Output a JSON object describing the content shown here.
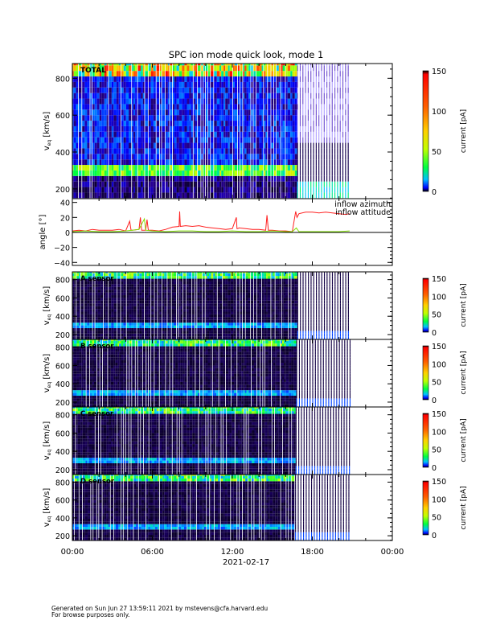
{
  "title": "SPC ion mode quick look, mode 1",
  "xaxis": {
    "tick_labels": [
      "00:00",
      "06:00",
      "12:00",
      "18:00",
      "00:00"
    ],
    "tick_hours": [
      0,
      6,
      12,
      18,
      24
    ],
    "date_label": "2021-02-17"
  },
  "footer": {
    "line1": "Generated on Sun Jun 27 13:59:11 2021 by mstevens@cfa.harvard.edu",
    "line2": "For browse purposes only."
  },
  "colors": {
    "azimuth": "#ff2020",
    "altitude": "#80e000",
    "missing": "#ffffff"
  },
  "chart_data": [
    {
      "type": "heatmap",
      "panel": "TOTAL",
      "label": "TOTAL",
      "ylabel": "v",
      "ylabel_sub": "eq",
      "ylabel_unit": "[km/s]",
      "yticks": [
        200,
        400,
        600,
        800
      ],
      "ylim": [
        147,
        880
      ],
      "xlim_hours": [
        0,
        24
      ],
      "colorbar": {
        "label": "current [pA]",
        "ticks": [
          0,
          50,
          100,
          150
        ],
        "range": [
          0,
          150
        ],
        "colormap": "rainbow"
      },
      "features": {
        "data_end_hour": 20.8,
        "mode_change_hour": 16.7,
        "core_band_kms": [
          250,
          320
        ],
        "core_band_after_change_kms": [
          170,
          230
        ]
      }
    },
    {
      "type": "line",
      "panel": "angle",
      "ylabel": "angle [°]",
      "yticks": [
        -40,
        -20,
        0,
        20,
        40
      ],
      "ylim": [
        -44,
        45
      ],
      "xlim_hours": [
        0,
        24
      ],
      "zero_line": true,
      "legend": "top-right",
      "series": [
        {
          "name": "inflow azimuth",
          "color": "#ff2020",
          "x": [
            0,
            0.5,
            1,
            1.5,
            2,
            2.5,
            3,
            3.5,
            4,
            4.3,
            4.4,
            4.5,
            5,
            5.1,
            5.2,
            5.5,
            5.6,
            5.7,
            6,
            6.5,
            7,
            7.5,
            8,
            8.05,
            8.1,
            8.5,
            9,
            9.5,
            10,
            10.5,
            11,
            11.5,
            12,
            12.3,
            12.35,
            12.4,
            12.5,
            13,
            13.5,
            14,
            14.5,
            14.6,
            14.7,
            15,
            15.5,
            16,
            16.5,
            16.75,
            16.85,
            17,
            17.5,
            18,
            18.5,
            19,
            19.5,
            20,
            20.5,
            20.8
          ],
          "y": [
            2,
            3,
            2,
            4,
            3,
            3,
            3,
            4,
            2,
            15,
            3,
            3,
            4,
            20,
            3,
            3,
            17,
            3,
            3,
            2,
            4,
            7,
            8,
            28,
            8,
            9,
            8,
            9,
            7,
            6,
            5,
            4,
            5,
            20,
            5,
            5,
            6,
            5,
            4,
            4,
            3,
            23,
            3,
            3,
            2,
            2,
            1,
            28,
            20,
            25,
            27,
            27,
            26,
            27,
            26,
            25,
            24,
            25
          ]
        },
        {
          "name": "inflow attitude",
          "color": "#80e000",
          "x": [
            0,
            1,
            2,
            3,
            4,
            4.5,
            5,
            5.4,
            5.5,
            6,
            7,
            8,
            9,
            10,
            11,
            12,
            13,
            14,
            15,
            16,
            16.5,
            16.8,
            17,
            18,
            19,
            20,
            20.8
          ],
          "y": [
            1,
            2,
            1,
            1,
            2,
            3,
            4,
            18,
            3,
            2,
            1,
            2,
            2,
            1,
            1,
            2,
            1,
            1,
            2,
            1,
            1,
            6,
            1,
            1,
            1,
            1,
            2
          ]
        }
      ]
    },
    {
      "type": "heatmap",
      "panel": "A",
      "label": "A sensor",
      "ylabel": "v",
      "ylabel_sub": "eq",
      "ylabel_unit": "[km/s]",
      "yticks": [
        200,
        400,
        600,
        800
      ],
      "ylim": [
        147,
        885
      ],
      "xlim_hours": [
        0,
        24
      ],
      "colorbar": {
        "label": "current [pA]",
        "ticks": [
          0,
          50,
          100,
          150
        ],
        "range": [
          0,
          150
        ],
        "colormap": "rainbow"
      }
    },
    {
      "type": "heatmap",
      "panel": "B",
      "label": "B sensor",
      "ylabel": "v",
      "ylabel_sub": "eq",
      "ylabel_unit": "[km/s]",
      "yticks": [
        200,
        400,
        600,
        800
      ],
      "ylim": [
        147,
        885
      ],
      "xlim_hours": [
        0,
        24
      ],
      "colorbar": {
        "label": "current [pA]",
        "ticks": [
          0,
          50,
          100,
          150
        ],
        "range": [
          0,
          150
        ],
        "colormap": "rainbow"
      }
    },
    {
      "type": "heatmap",
      "panel": "C",
      "label": "C sensor",
      "ylabel": "v",
      "ylabel_sub": "eq",
      "ylabel_unit": "[km/s]",
      "yticks": [
        200,
        400,
        600,
        800
      ],
      "ylim": [
        147,
        885
      ],
      "xlim_hours": [
        0,
        24
      ],
      "colorbar": {
        "label": "current [pA]",
        "ticks": [
          0,
          50,
          100,
          150
        ],
        "range": [
          0,
          150
        ],
        "colormap": "rainbow"
      }
    },
    {
      "type": "heatmap",
      "panel": "D",
      "label": "D sensor",
      "ylabel": "v",
      "ylabel_sub": "eq",
      "ylabel_unit": "[km/s]",
      "yticks": [
        200,
        400,
        600,
        800
      ],
      "ylim": [
        147,
        885
      ],
      "xlim_hours": [
        0,
        24
      ],
      "colorbar": {
        "label": "current [pA]",
        "ticks": [
          0,
          50,
          100,
          150
        ],
        "range": [
          0,
          150
        ],
        "colormap": "rainbow"
      }
    }
  ]
}
